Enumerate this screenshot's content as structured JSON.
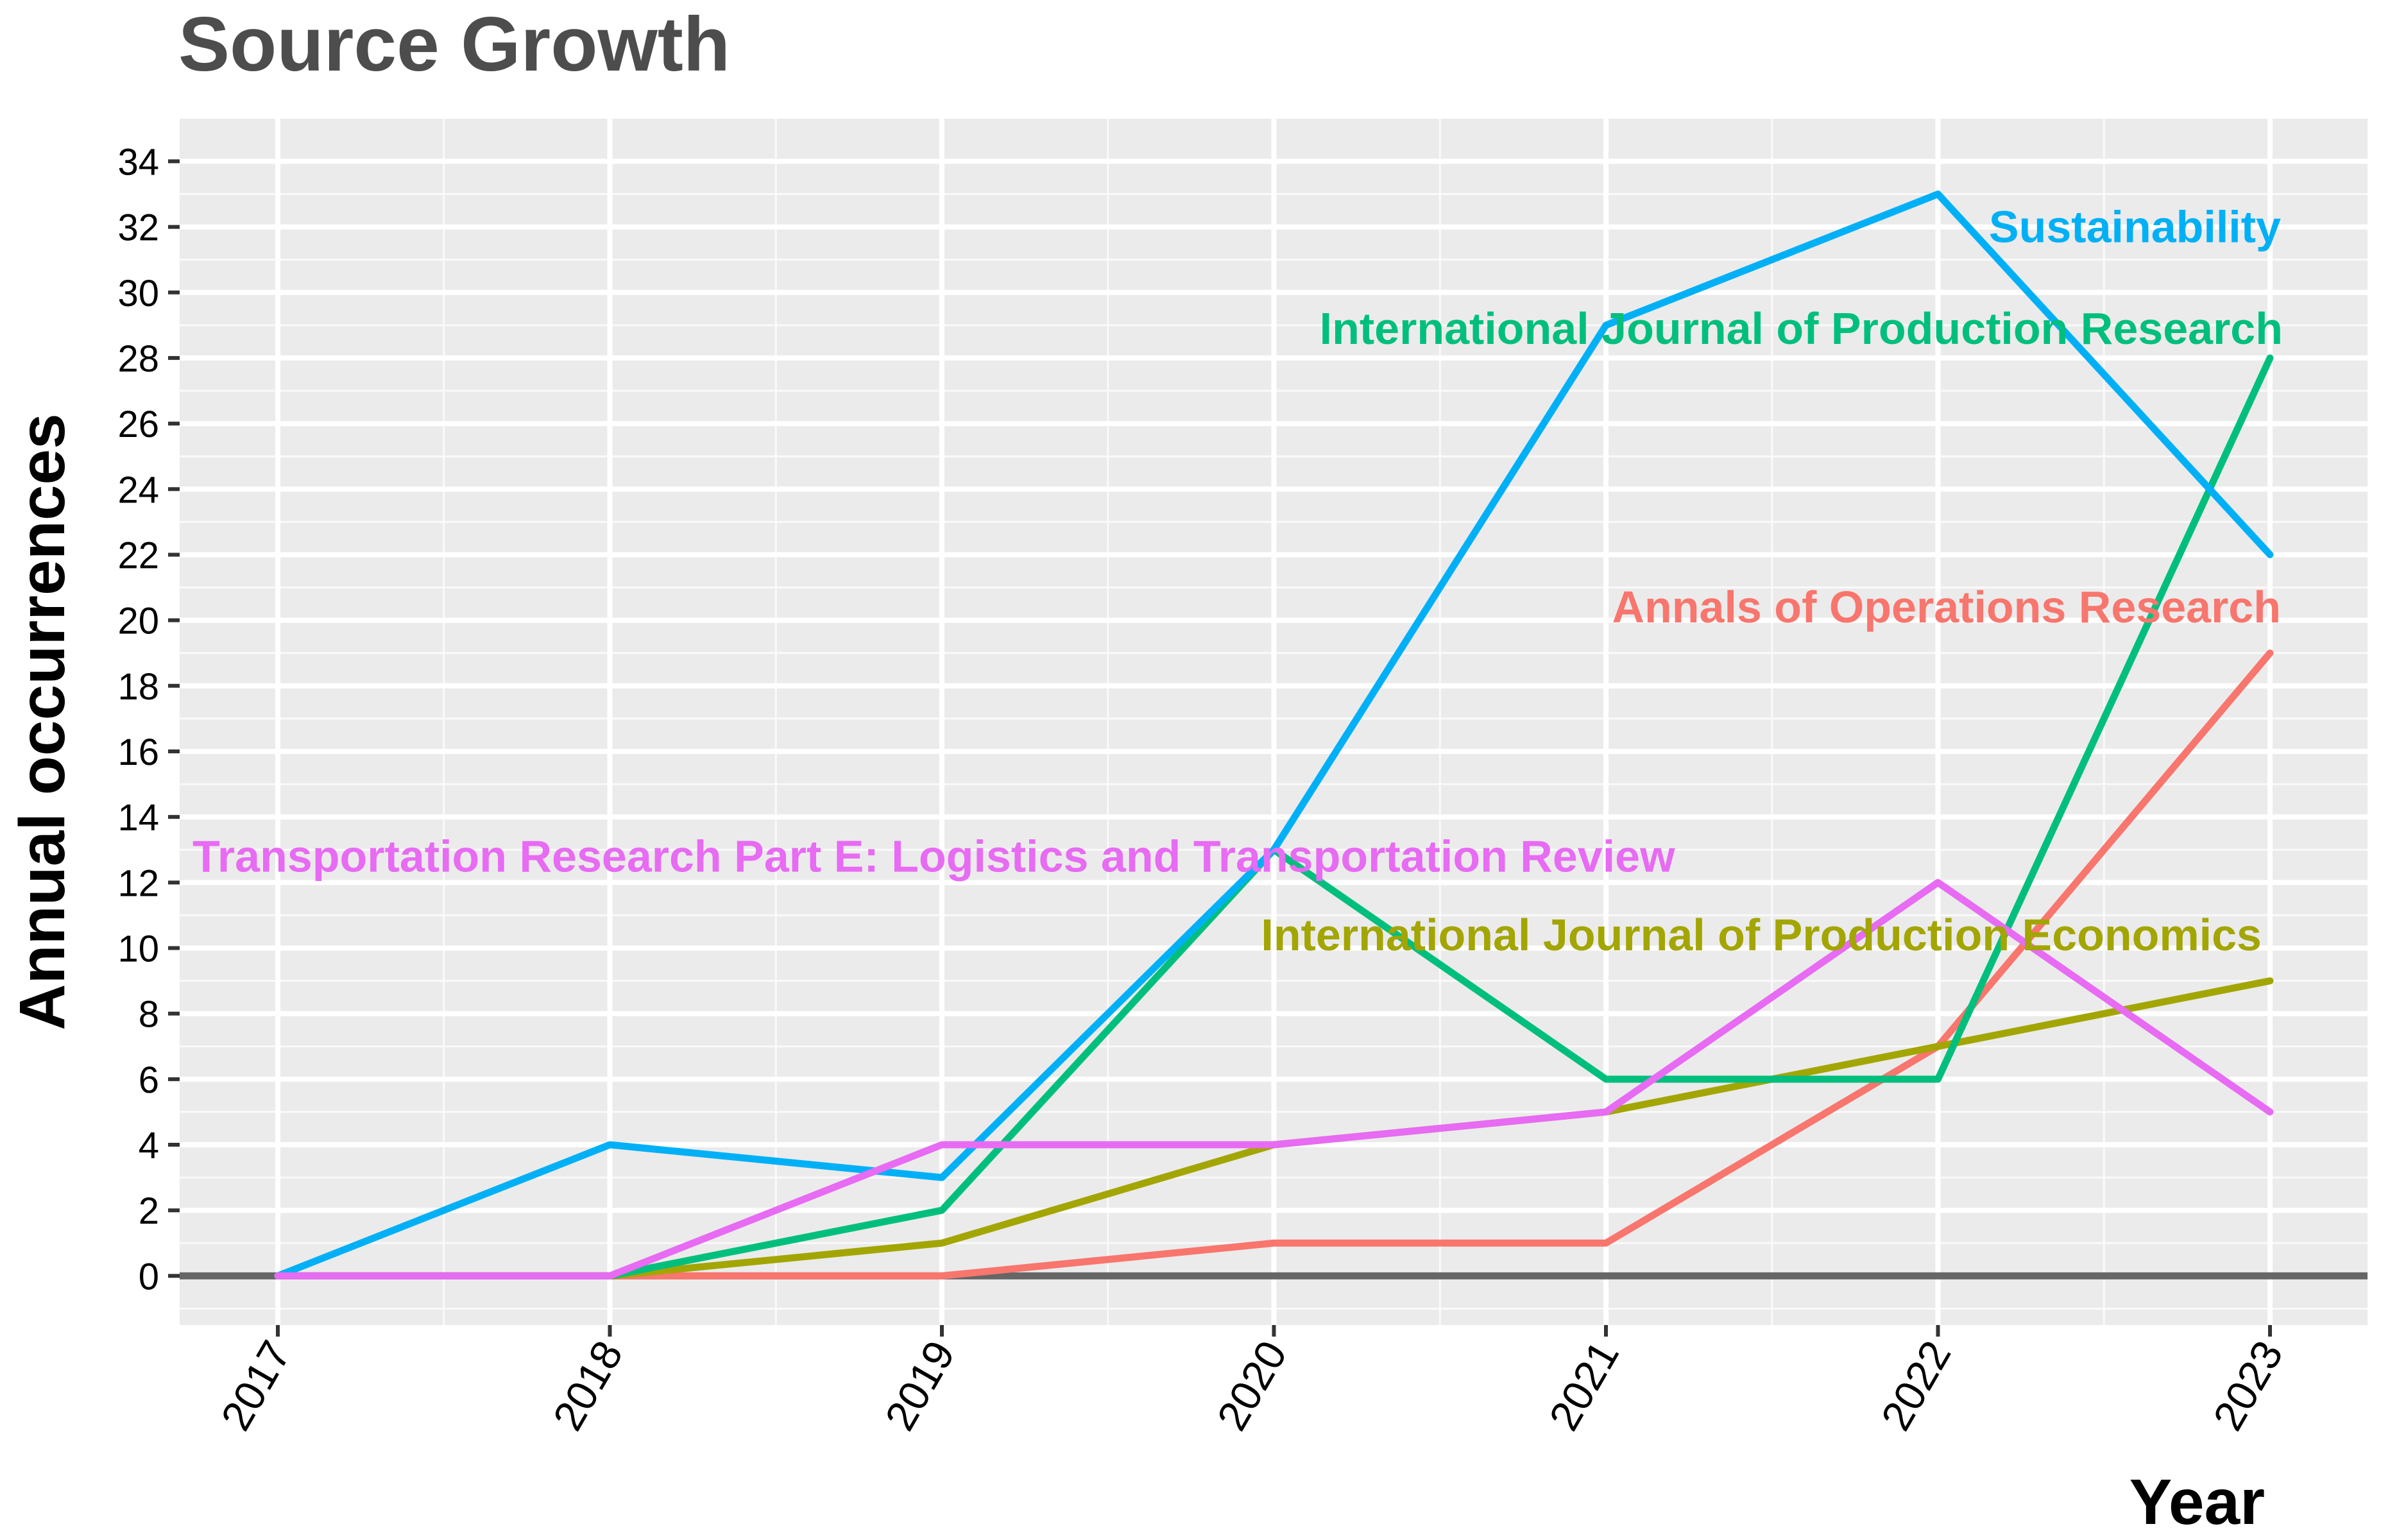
{
  "chart_data": {
    "type": "line",
    "title": "Source Growth",
    "xlabel": "Year",
    "ylabel": "Annual occurrences",
    "x": [
      "2017",
      "2018",
      "2019",
      "2020",
      "2021",
      "2022",
      "2023"
    ],
    "yticks": [
      0,
      2,
      4,
      6,
      8,
      10,
      12,
      14,
      16,
      18,
      20,
      22,
      24,
      26,
      28,
      30,
      32,
      34
    ],
    "ylim": [
      -1.5,
      35.3
    ],
    "grid": true,
    "legend": "direct labels near line ends",
    "series": [
      {
        "name": "Annals of Operations Research",
        "color": "#f8766d",
        "values": [
          0,
          0,
          0,
          1,
          1,
          7,
          19
        ]
      },
      {
        "name": "International Journal of Production Economics",
        "color": "#a3a500",
        "values": [
          0,
          0,
          1,
          4,
          5,
          7,
          9
        ]
      },
      {
        "name": "International Journal of Production Research",
        "color": "#00bf7d",
        "values": [
          0,
          0,
          2,
          13,
          6,
          6,
          28
        ]
      },
      {
        "name": "Sustainability",
        "color": "#00b0f6",
        "values": [
          0,
          4,
          3,
          13,
          29,
          33,
          22
        ]
      },
      {
        "name": "Transportation Research Part E: Logistics and Transportation Review",
        "color": "#e76bf3",
        "values": [
          0,
          0,
          4,
          4,
          5,
          12,
          5
        ]
      }
    ]
  }
}
